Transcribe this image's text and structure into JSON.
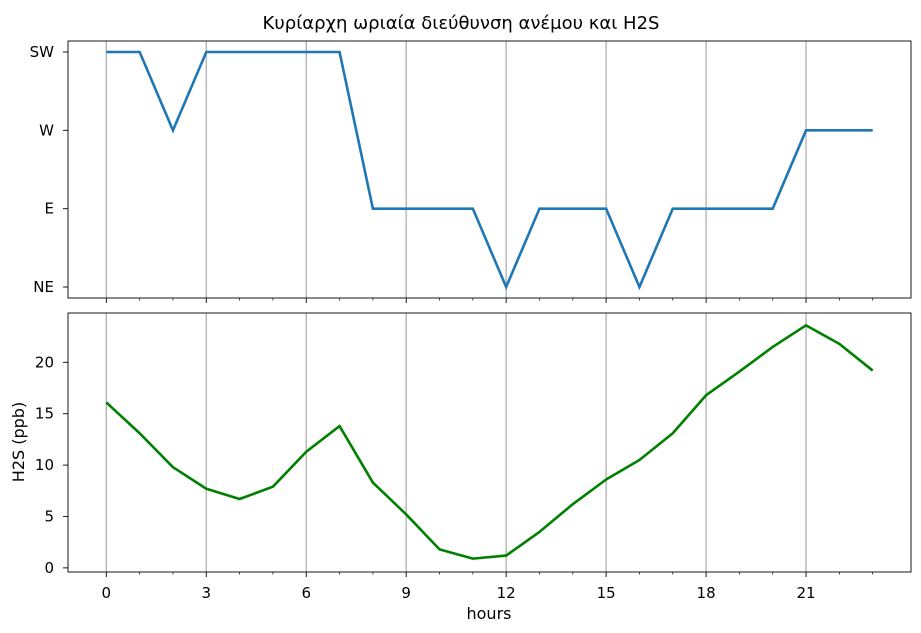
{
  "chart_data": [
    {
      "type": "line",
      "title": "Κυρίαρχη ωριαία διεύθυνση ανέμου και H2S",
      "xlabel": "",
      "ylabel": "",
      "x": [
        0,
        1,
        2,
        3,
        4,
        5,
        6,
        7,
        8,
        9,
        10,
        11,
        12,
        13,
        14,
        15,
        16,
        17,
        18,
        19,
        20,
        21,
        22,
        23
      ],
      "y_categories": [
        "NE",
        "E",
        "W",
        "SW"
      ],
      "series": [
        {
          "color": "#1f77b4",
          "values": [
            "SW",
            "SW",
            "W",
            "SW",
            "SW",
            "SW",
            "SW",
            "SW",
            "E",
            "E",
            "E",
            "E",
            "NE",
            "E",
            "E",
            "E",
            "NE",
            "E",
            "E",
            "E",
            "E",
            "W",
            "W",
            "W"
          ]
        }
      ],
      "xlim": [
        -1.15,
        24.15
      ],
      "xticks": [
        0,
        3,
        6,
        9,
        12,
        15,
        18,
        21
      ],
      "grid": "x"
    },
    {
      "type": "line",
      "title": "",
      "xlabel": "hours",
      "ylabel": "H2S (ppb)",
      "x": [
        0,
        1,
        2,
        3,
        4,
        5,
        6,
        7,
        8,
        9,
        10,
        11,
        12,
        13,
        14,
        15,
        16,
        17,
        18,
        19,
        20,
        21,
        22,
        23
      ],
      "series": [
        {
          "color": "#008000",
          "values": [
            16.1,
            13.1,
            9.8,
            7.7,
            6.7,
            7.9,
            11.3,
            13.8,
            8.3,
            5.2,
            1.8,
            0.9,
            1.2,
            3.5,
            6.2,
            8.6,
            10.5,
            13.1,
            16.8,
            19.1,
            21.5,
            23.6,
            21.8,
            19.2
          ]
        }
      ],
      "xlim": [
        -1.15,
        24.15
      ],
      "ylim": [
        -0.4,
        24.8
      ],
      "xticks": [
        0,
        3,
        6,
        9,
        12,
        15,
        18,
        21
      ],
      "yticks": [
        0,
        5,
        10,
        15,
        20
      ],
      "grid": "x"
    }
  ]
}
